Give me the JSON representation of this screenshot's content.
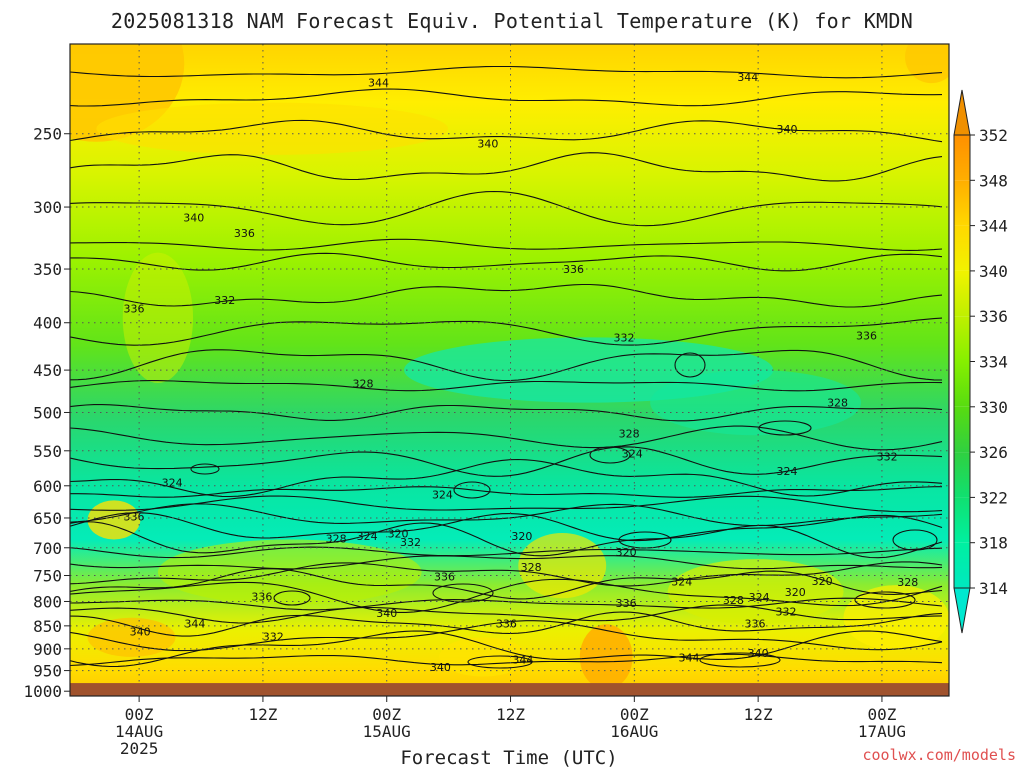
{
  "chart_data": {
    "type": "heatmap",
    "title": "2025081318 NAM Forecast Equiv. Potential Temperature (K) for KMDN",
    "xlabel": "Forecast Time (UTC)",
    "ylabel": "",
    "y_axis": {
      "unit": "hPa",
      "reversed": true,
      "range": [
        1000,
        200
      ],
      "ticks": [
        250,
        300,
        350,
        400,
        450,
        500,
        550,
        600,
        650,
        700,
        750,
        800,
        850,
        900,
        950,
        1000
      ]
    },
    "x_axis": {
      "range": [
        "2025-08-13 18Z",
        "2025-08-17 06Z"
      ],
      "ticks": [
        {
          "label": "00Z",
          "sub": "14AUG",
          "sub2": "2025",
          "hours": 6
        },
        {
          "label": "12Z",
          "sub": "",
          "sub2": "",
          "hours": 18
        },
        {
          "label": "00Z",
          "sub": "15AUG",
          "sub2": "",
          "hours": 30
        },
        {
          "label": "12Z",
          "sub": "",
          "sub2": "",
          "hours": 42
        },
        {
          "label": "00Z",
          "sub": "16AUG",
          "sub2": "",
          "hours": 54
        },
        {
          "label": "12Z",
          "sub": "",
          "sub2": "",
          "hours": 66
        },
        {
          "label": "00Z",
          "sub": "17AUG",
          "sub2": "",
          "hours": 78
        }
      ]
    },
    "grid": true,
    "colorbar": {
      "placement": "right",
      "levels": [
        314,
        318,
        322,
        326,
        330,
        334,
        336,
        340,
        344,
        348,
        352
      ],
      "colors": [
        "#00e8c0",
        "#00f0a0",
        "#10e070",
        "#30d040",
        "#58dc10",
        "#86f000",
        "#bff000",
        "#f2f200",
        "#ffd800",
        "#ffae00",
        "#ff9000"
      ]
    },
    "contour_levels": [
      320,
      324,
      328,
      332,
      336,
      340,
      344
    ],
    "contour_labels": [
      {
        "value": "344",
        "hours": 29.2,
        "hPa": 220
      },
      {
        "value": "344",
        "hours": 65.0,
        "hPa": 217
      },
      {
        "value": "340",
        "hours": 39.8,
        "hPa": 256
      },
      {
        "value": "340",
        "hours": 68.8,
        "hPa": 247
      },
      {
        "value": "340",
        "hours": 11.3,
        "hPa": 308
      },
      {
        "value": "336",
        "hours": 16.2,
        "hPa": 320
      },
      {
        "value": "336",
        "hours": 48.1,
        "hPa": 350
      },
      {
        "value": "336",
        "hours": 5.5,
        "hPa": 386
      },
      {
        "value": "336",
        "hours": 76.5,
        "hPa": 413
      },
      {
        "value": "332",
        "hours": 14.3,
        "hPa": 378
      },
      {
        "value": "332",
        "hours": 53.0,
        "hPa": 415
      },
      {
        "value": "328",
        "hours": 27.7,
        "hPa": 465
      },
      {
        "value": "328",
        "hours": 73.7,
        "hPa": 488
      },
      {
        "value": "328",
        "hours": 53.5,
        "hPa": 527
      },
      {
        "value": "332",
        "hours": 78.5,
        "hPa": 558
      },
      {
        "value": "324",
        "hours": 53.8,
        "hPa": 554
      },
      {
        "value": "324",
        "hours": 9.2,
        "hPa": 595
      },
      {
        "value": "324",
        "hours": 35.4,
        "hPa": 613
      },
      {
        "value": "324",
        "hours": 68.8,
        "hPa": 578
      },
      {
        "value": "328",
        "hours": 25.1,
        "hPa": 684
      },
      {
        "value": "324",
        "hours": 28.1,
        "hPa": 680
      },
      {
        "value": "320",
        "hours": 31.1,
        "hPa": 676
      },
      {
        "value": "320",
        "hours": 43.1,
        "hPa": 680
      },
      {
        "value": "320",
        "hours": 53.2,
        "hPa": 707
      },
      {
        "value": "332",
        "hours": 32.3,
        "hPa": 690
      },
      {
        "value": "336",
        "hours": 5.5,
        "hPa": 648
      },
      {
        "value": "328",
        "hours": 44.0,
        "hPa": 734
      },
      {
        "value": "336",
        "hours": 35.6,
        "hPa": 752
      },
      {
        "value": "324",
        "hours": 58.6,
        "hPa": 761
      },
      {
        "value": "320",
        "hours": 72.2,
        "hPa": 760
      },
      {
        "value": "320",
        "hours": 69.6,
        "hPa": 781
      },
      {
        "value": "328",
        "hours": 80.5,
        "hPa": 762
      },
      {
        "value": "328",
        "hours": 63.6,
        "hPa": 797
      },
      {
        "value": "324",
        "hours": 66.1,
        "hPa": 791
      },
      {
        "value": "336",
        "hours": 17.9,
        "hPa": 790
      },
      {
        "value": "336",
        "hours": 53.2,
        "hPa": 803
      },
      {
        "value": "332",
        "hours": 68.7,
        "hPa": 820
      },
      {
        "value": "340",
        "hours": 30.0,
        "hPa": 823
      },
      {
        "value": "336",
        "hours": 41.6,
        "hPa": 845
      },
      {
        "value": "336",
        "hours": 65.7,
        "hPa": 845
      },
      {
        "value": "332",
        "hours": 19.0,
        "hPa": 873
      },
      {
        "value": "344",
        "hours": 11.4,
        "hPa": 845
      },
      {
        "value": "340",
        "hours": 6.1,
        "hPa": 862
      },
      {
        "value": "344",
        "hours": 43.2,
        "hPa": 924
      },
      {
        "value": "344",
        "hours": 59.3,
        "hPa": 920
      },
      {
        "value": "340",
        "hours": 66.0,
        "hPa": 909
      },
      {
        "value": "340",
        "hours": 35.2,
        "hPa": 942
      }
    ],
    "surface_below_hPa": 980
  },
  "credit": "coolwx.com/models"
}
